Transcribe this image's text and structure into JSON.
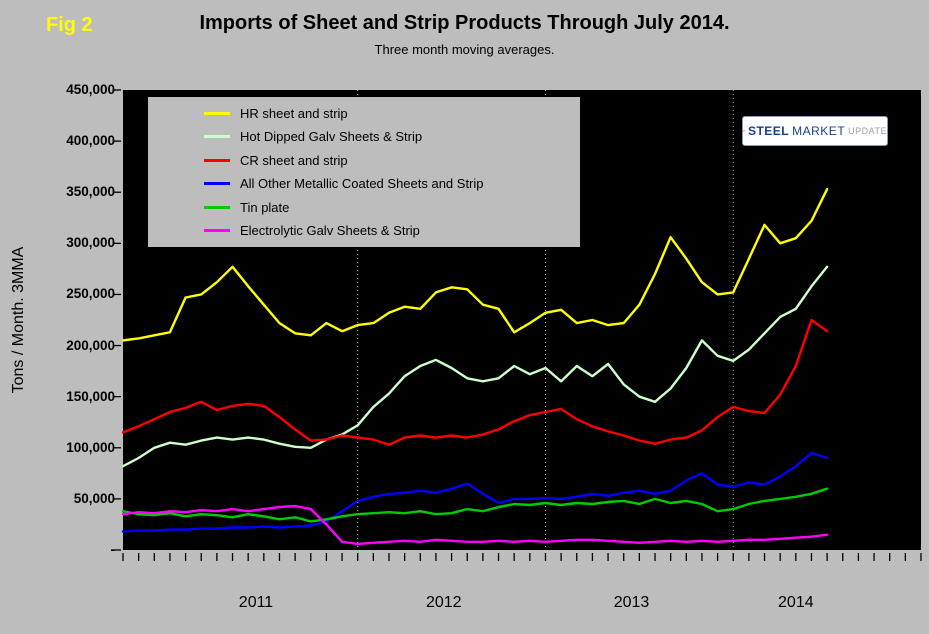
{
  "figure_label": "Fig 2",
  "title": "Imports of Sheet and Strip Products Through July 2014.",
  "subtitle": "Three month moving averages.",
  "y_axis_label": "Tons / Month. 3MMA",
  "logo": {
    "word1": "STEEL",
    "word2": "MARKET",
    "word3": "UPDATE"
  },
  "colors": {
    "page_background": "#bdbdbd",
    "figure_label": "#ffff00",
    "plot_background": "#000000",
    "tick": "#000000"
  },
  "chart_data": {
    "type": "line",
    "title": "Imports of Sheet and Strip Products Through July 2014.",
    "subtitle": "Three month moving averages.",
    "ylabel": "Tons / Month. 3MMA",
    "ylim": [
      0,
      450000
    ],
    "ytick_step": 50000,
    "ytick_labels": [
      "-",
      "50,000",
      "100,000",
      "150,000",
      "200,000",
      "250,000",
      "300,000",
      "350,000",
      "400,000",
      "450,000"
    ],
    "x_interval": "month",
    "x_start": "Oct 2010",
    "x_end": "Jul 2014",
    "x_total_intervals": 51,
    "gridline_month_indices": [
      15,
      27,
      39
    ],
    "gridline_color": "#b4b4b4",
    "grid": "vertical dotted lines at year boundaries",
    "plot_background": "#000000",
    "legend_position": "top-left",
    "year_labels": [
      {
        "label": "2011",
        "center_month_index": 8.5
      },
      {
        "label": "2012",
        "center_month_index": 20.5
      },
      {
        "label": "2013",
        "center_month_index": 32.5
      },
      {
        "label": "2014",
        "center_month_index": 43
      }
    ],
    "series": [
      {
        "name": "HR sheet and strip",
        "color": "#ffff00",
        "values": [
          205000,
          207000,
          210000,
          213000,
          247000,
          250000,
          262000,
          277000,
          258000,
          240000,
          222000,
          212000,
          210000,
          222000,
          214000,
          220000,
          222000,
          232000,
          238000,
          236000,
          252000,
          257000,
          255000,
          240000,
          236000,
          213000,
          222000,
          232000,
          235000,
          222000,
          225000,
          220000,
          222000,
          240000,
          270000,
          306000,
          285000,
          262000,
          250000,
          252000,
          285000,
          318000,
          300000,
          305000,
          322000,
          353000
        ]
      },
      {
        "name": "Hot Dipped Galv Sheets & Strip",
        "color": "#ccffcc",
        "values": [
          82000,
          90000,
          100000,
          105000,
          103000,
          107000,
          110000,
          108000,
          110000,
          108000,
          104000,
          101000,
          100000,
          108000,
          113000,
          122000,
          140000,
          153000,
          170000,
          180000,
          186000,
          178000,
          168000,
          165000,
          168000,
          180000,
          172000,
          178000,
          165000,
          180000,
          170000,
          182000,
          162000,
          150000,
          145000,
          158000,
          178000,
          205000,
          190000,
          185000,
          196000,
          212000,
          228000,
          236000,
          258000,
          277000
        ]
      },
      {
        "name": "CR sheet and strip",
        "color": "#ff0000",
        "values": [
          115000,
          121000,
          128000,
          135000,
          139000,
          145000,
          137000,
          141000,
          143000,
          141000,
          130000,
          118000,
          107000,
          108000,
          112000,
          110000,
          108000,
          103000,
          110000,
          112000,
          110000,
          112000,
          110000,
          113000,
          118000,
          126000,
          132000,
          135000,
          138000,
          128000,
          121000,
          116000,
          112000,
          107000,
          104000,
          108000,
          110000,
          117000,
          130000,
          140000,
          136000,
          134000,
          152000,
          180000,
          225000,
          214000
        ]
      },
      {
        "name": "All Other Metallic Coated Sheets and Strip",
        "color": "#0000ff",
        "values": [
          18000,
          19000,
          19000,
          20000,
          20000,
          21000,
          21000,
          22000,
          22000,
          23000,
          22000,
          23000,
          24000,
          28000,
          38000,
          48000,
          52000,
          55000,
          56000,
          58000,
          56000,
          60000,
          65000,
          55000,
          46000,
          50000,
          50000,
          51000,
          50000,
          52000,
          55000,
          53000,
          56000,
          58000,
          55000,
          58000,
          68000,
          75000,
          64000,
          62000,
          66000,
          64000,
          72000,
          82000,
          95000,
          90000
        ]
      },
      {
        "name": "Tin plate",
        "color": "#00cc00",
        "values": [
          38000,
          35000,
          34000,
          36000,
          33000,
          35000,
          34000,
          32000,
          35000,
          33000,
          30000,
          32000,
          28000,
          30000,
          33000,
          35000,
          36000,
          37000,
          36000,
          38000,
          35000,
          36000,
          40000,
          38000,
          42000,
          45000,
          44000,
          46000,
          44000,
          46000,
          45000,
          47000,
          48000,
          45000,
          50000,
          46000,
          48000,
          45000,
          38000,
          40000,
          45000,
          48000,
          50000,
          52000,
          55000,
          60000
        ]
      },
      {
        "name": "Electrolytic Galv Sheets & Strip",
        "color": "#ff00ff",
        "values": [
          35000,
          37000,
          36000,
          38000,
          37000,
          39000,
          38000,
          40000,
          38000,
          40000,
          42000,
          43000,
          40000,
          25000,
          8000,
          6000,
          7000,
          8000,
          9000,
          8000,
          10000,
          9000,
          8000,
          8000,
          9000,
          8000,
          9000,
          8000,
          9000,
          10000,
          10000,
          9000,
          8000,
          7000,
          8000,
          9000,
          8000,
          9000,
          8000,
          9000,
          10000,
          10000,
          11000,
          12000,
          13000,
          15000
        ]
      }
    ]
  }
}
